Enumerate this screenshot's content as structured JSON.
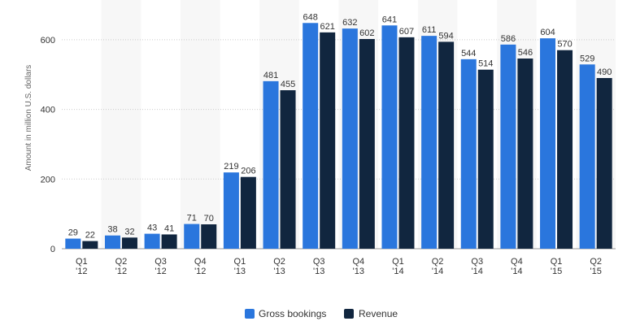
{
  "chart_data": {
    "type": "bar",
    "categories": [
      [
        "Q1",
        "'12"
      ],
      [
        "Q2",
        "'12"
      ],
      [
        "Q3",
        "'12"
      ],
      [
        "Q4",
        "'12"
      ],
      [
        "Q1",
        "'13"
      ],
      [
        "Q2",
        "'13"
      ],
      [
        "Q3",
        "'13"
      ],
      [
        "Q4",
        "'13"
      ],
      [
        "Q1",
        "'14"
      ],
      [
        "Q2",
        "'14"
      ],
      [
        "Q3",
        "'14"
      ],
      [
        "Q4",
        "'14"
      ],
      [
        "Q1",
        "'15"
      ],
      [
        "Q2",
        "'15"
      ]
    ],
    "series": [
      {
        "name": "Gross bookings",
        "color": "#2a76dd",
        "values": [
          29,
          38,
          43,
          71,
          219,
          481,
          648,
          632,
          641,
          611,
          544,
          586,
          604,
          529
        ]
      },
      {
        "name": "Revenue",
        "color": "#11263f",
        "values": [
          22,
          32,
          41,
          70,
          206,
          455,
          621,
          602,
          607,
          594,
          514,
          546,
          570,
          490
        ]
      }
    ],
    "ylabel": "Amount in million U.S. dollars",
    "ylim": [
      0,
      700
    ],
    "yticks": [
      0,
      200,
      400,
      600
    ],
    "grid": true,
    "alternating_bands": true,
    "legend_position": "bottom-center",
    "colors": {
      "band": "#f7f7f7",
      "grid": "#cccccc",
      "axis": "#999999"
    }
  }
}
